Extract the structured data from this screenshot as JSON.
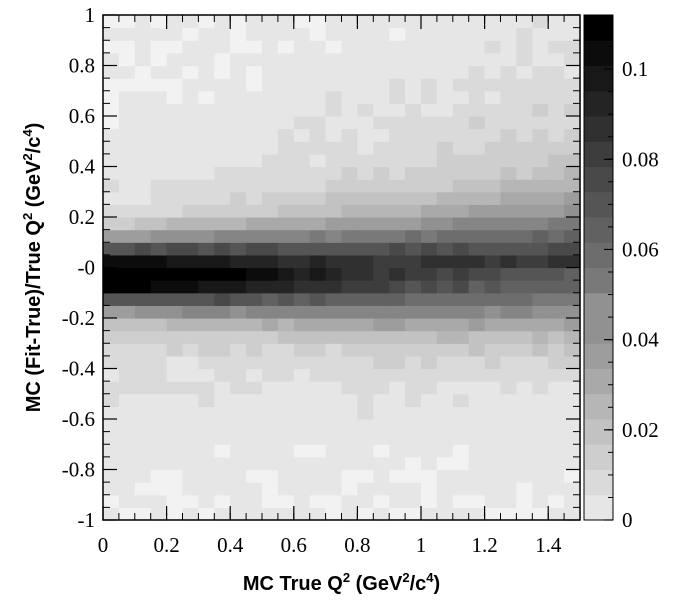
{
  "chart_data": {
    "type": "heatmap",
    "xlabel_parts": [
      "MC True Q",
      "2",
      " (GeV",
      "2",
      "/c",
      "4",
      ")"
    ],
    "ylabel_parts": [
      "MC (Fit-True)/True Q",
      "2",
      " (GeV",
      "2",
      "/c",
      "4",
      ")"
    ],
    "xlim": [
      0,
      1.5
    ],
    "ylim": [
      -1,
      1
    ],
    "x_ticks": [
      "0",
      "0.2",
      "0.4",
      "0.6",
      "0.8",
      "1",
      "1.2",
      "1.4"
    ],
    "y_ticks": [
      "-1",
      "-0.8",
      "-0.6",
      "-0.4",
      "-0.2",
      "-0",
      "0.2",
      "0.4",
      "0.6",
      "0.8",
      "1"
    ],
    "colorbar": {
      "range": [
        0,
        0.112
      ],
      "ticks": [
        "0",
        "0.02",
        "0.04",
        "0.06",
        "0.08",
        "0.1"
      ],
      "palette": "grayscale, white=low, black=high"
    },
    "grid": false,
    "bins": {
      "x_start": 0,
      "x_width": 0.05,
      "nx": 30,
      "y_start": -1,
      "y_width": 0.05,
      "ny": 40,
      "ridge_y": -0.02,
      "ridge_peak": [
        0.11,
        0.106,
        0.1,
        0.094,
        0.088,
        0.082,
        0.078,
        0.074,
        0.07,
        0.066,
        0.062,
        0.058,
        0.055,
        0.052,
        0.05,
        0.048
      ],
      "ridge_sigma": [
        0.09,
        0.095,
        0.1,
        0.105,
        0.11,
        0.115,
        0.12,
        0.125,
        0.13,
        0.135,
        0.14,
        0.145,
        0.15,
        0.155,
        0.16,
        0.165
      ],
      "upper_tail_level": [
        0.008,
        0.009,
        0.01,
        0.011,
        0.012,
        0.013,
        0.014,
        0.015,
        0.016,
        0.018,
        0.02,
        0.022,
        0.024,
        0.026,
        0.028,
        0.03
      ],
      "lower_tail_level": 0.012,
      "noise": 0.005
    }
  }
}
